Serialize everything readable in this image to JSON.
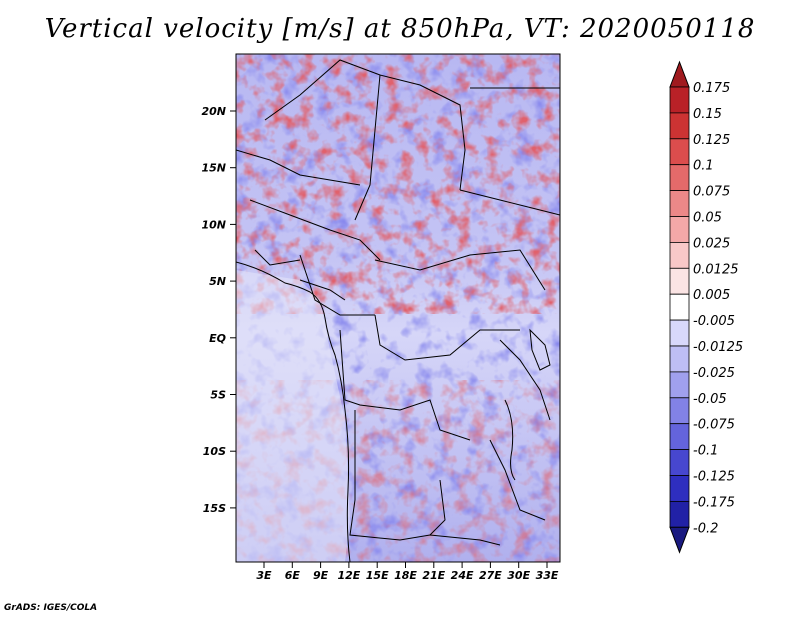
{
  "title": "Vertical velocity [m/s] at 850hPa, VT: 2020050118",
  "credit": "GrADS: IGES/COLA",
  "map": {
    "lat_labels": [
      "20N",
      "15N",
      "10N",
      "5N",
      "EQ",
      "5S",
      "10S",
      "15S"
    ],
    "lon_labels": [
      "3E",
      "6E",
      "9E",
      "12E",
      "15E",
      "18E",
      "21E",
      "24E",
      "27E",
      "30E",
      "33E"
    ]
  },
  "colorbar": {
    "levels": [
      "0.175",
      "0.15",
      "0.125",
      "0.1",
      "0.075",
      "0.05",
      "0.025",
      "0.0125",
      "0.005",
      "-0.005",
      "-0.0125",
      "-0.025",
      "-0.05",
      "-0.075",
      "-0.1",
      "-0.125",
      "-0.175",
      "-0.2"
    ],
    "colors": [
      "#a01a1f",
      "#b92127",
      "#cc3333",
      "#db4d4d",
      "#e46a6a",
      "#ec8888",
      "#f3a8a8",
      "#f8c8c8",
      "#fbe4e4",
      "#ffffff",
      "#d8d8fb",
      "#bebef5",
      "#a0a0ee",
      "#8282e6",
      "#6464dc",
      "#4747cf",
      "#2e2ebf",
      "#2121a6",
      "#1a1a80"
    ]
  }
}
